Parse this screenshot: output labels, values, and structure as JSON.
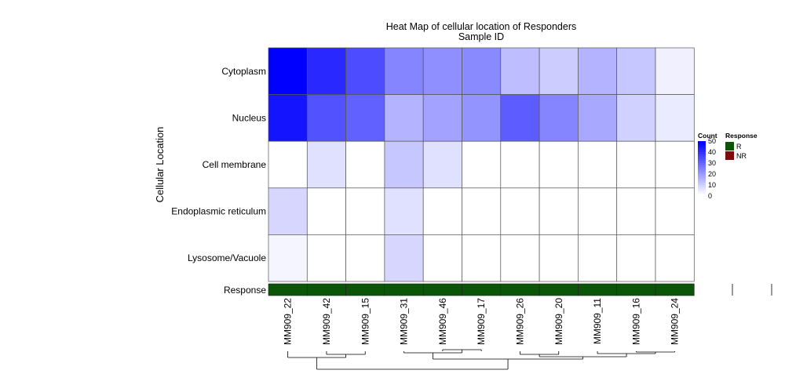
{
  "chart_data": {
    "type": "heatmap",
    "title": "Heat Map of cellular location of Responders",
    "subtitle": "Sample ID",
    "ylabel": "Cellular Location",
    "rows": [
      "Cytoplasm",
      "Nucleus",
      "Cell membrane",
      "Endoplasmic reticulum",
      "Lysosome/Vacuole"
    ],
    "columns": [
      "MM909_22",
      "MM909_42",
      "MM909_15",
      "MM909_31",
      "MM909_46",
      "MM909_17",
      "MM909_26",
      "MM909_20",
      "MM909_11",
      "MM909_16",
      "MM909_24"
    ],
    "values": [
      [
        50,
        42,
        35,
        24,
        22,
        23,
        13,
        10,
        15,
        11,
        3
      ],
      [
        46,
        34,
        31,
        15,
        18,
        21,
        32,
        24,
        17,
        9,
        4
      ],
      [
        0,
        6,
        0,
        11,
        6,
        0,
        0,
        0,
        0,
        0,
        0
      ],
      [
        8,
        0,
        0,
        6,
        0,
        0,
        0,
        0,
        0,
        0,
        0
      ],
      [
        2,
        0,
        0,
        8,
        0,
        0,
        0,
        0,
        0,
        0,
        0
      ]
    ],
    "annotation_label": "Response",
    "annotation": [
      "R",
      "R",
      "R",
      "R",
      "R",
      "R",
      "R",
      "R",
      "R",
      "R",
      "R"
    ],
    "color_scale": {
      "name": "Count",
      "min": 0,
      "max": 50,
      "low_color": "#ffffff",
      "high_color": "#0000ff",
      "ticks": [
        0,
        10,
        20,
        30,
        40,
        50
      ]
    },
    "response_legend": {
      "title": "Response",
      "items": [
        {
          "label": "R",
          "color": "#0b5509"
        },
        {
          "label": "NR",
          "color": "#7d0b0b"
        }
      ]
    },
    "dendrogram_order": [
      "MM909_22",
      "MM909_42",
      "MM909_15",
      "MM909_31",
      "MM909_46",
      "MM909_17",
      "MM909_26",
      "MM909_20",
      "MM909_11",
      "MM909_16",
      "MM909_24"
    ]
  }
}
